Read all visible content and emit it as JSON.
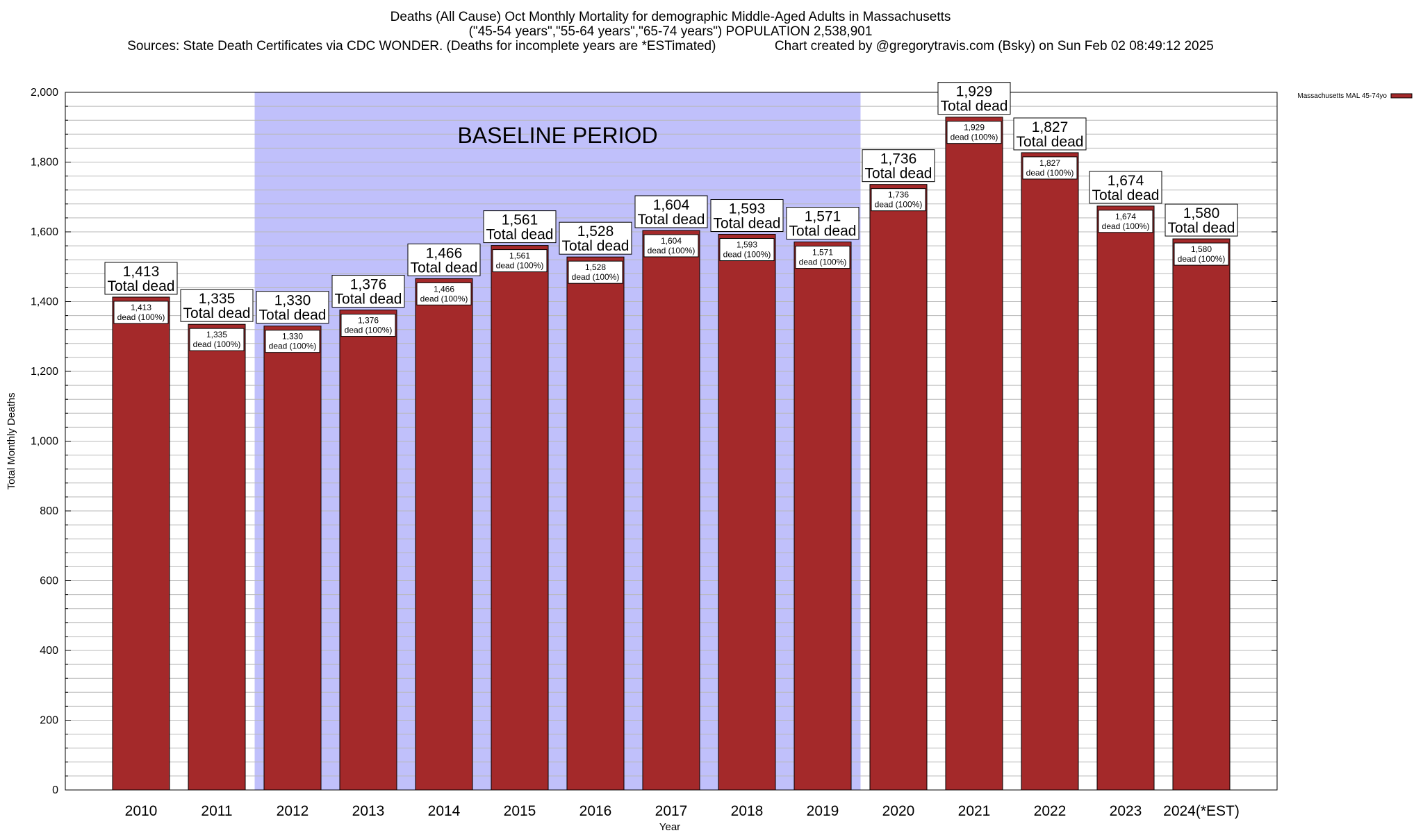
{
  "chart_data": {
    "type": "bar",
    "title_lines": [
      "Deaths (All Cause) Oct Monthly Mortality for demographic Middle-Aged Adults in Massachusetts",
      "(\"45-54 years\",\"55-64 years\",\"65-74 years\") POPULATION 2,538,901",
      "Sources: State Death Certificates via CDC WONDER. (Deaths for incomplete years are *ESTimated)                Chart created by @gregorytravis.com (Bsky) on Sun Feb 02 08:49:12 2025"
    ],
    "categories": [
      "2010",
      "2011",
      "2012",
      "2013",
      "2014",
      "2015",
      "2016",
      "2017",
      "2018",
      "2019",
      "2020",
      "2021",
      "2022",
      "2023",
      "2024(*EST)"
    ],
    "values": [
      1413,
      1335,
      1330,
      1376,
      1466,
      1561,
      1528,
      1604,
      1593,
      1571,
      1736,
      1929,
      1827,
      1674,
      1580
    ],
    "value_labels": [
      "1,413",
      "1,335",
      "1,330",
      "1,376",
      "1,466",
      "1,561",
      "1,528",
      "1,604",
      "1,593",
      "1,571",
      "1,736",
      "1,929",
      "1,827",
      "1,674",
      "1,580"
    ],
    "total_label": "Total dead",
    "inner_label": "dead (100%)",
    "xlabel": "Year",
    "ylabel": "Total Monthly Deaths",
    "ylim": [
      0,
      2000
    ],
    "yticks": [
      0,
      200,
      400,
      600,
      800,
      1000,
      1200,
      1400,
      1600,
      1800,
      2000
    ],
    "ytick_labels": [
      "0",
      "200",
      "400",
      "600",
      "800",
      "1,000",
      "1,200",
      "1,400",
      "1,600",
      "1,800",
      "2,000"
    ],
    "minor_step": 40,
    "baseline": {
      "label": "BASELINE PERIOD",
      "start": "2012",
      "end": "2019",
      "color": "#c0c0fb"
    },
    "legend": {
      "label": "Massachusetts MAL 45-74yo",
      "position": "top-right"
    },
    "colors": {
      "bar": "#a4292a",
      "bar_stroke": "#000000",
      "grid": "#b8b8b8"
    }
  }
}
